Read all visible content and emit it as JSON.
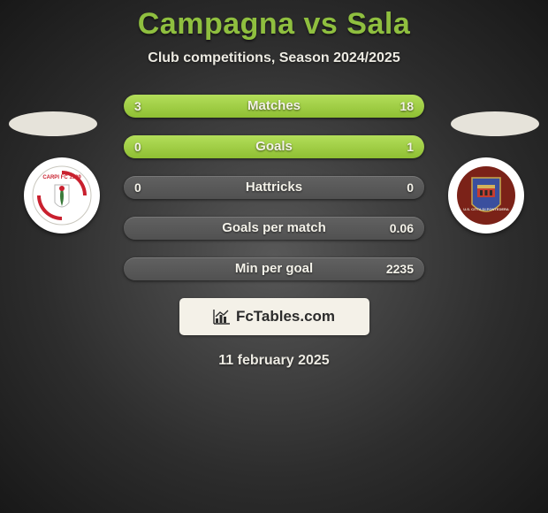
{
  "header": {
    "title": "Campagna vs Sala",
    "title_color": "#8fbf3f",
    "subtitle": "Club competitions, Season 2024/2025"
  },
  "stats": {
    "bar_bg": "#585858",
    "fill_color_top": "#b3de5a",
    "fill_color_bottom": "#8fbf33",
    "rows": [
      {
        "label": "Matches",
        "left": "3",
        "right": "18",
        "fill_left_pct": 14,
        "fill_right_pct": 86
      },
      {
        "label": "Goals",
        "left": "0",
        "right": "1",
        "fill_left_pct": 0,
        "fill_right_pct": 100
      },
      {
        "label": "Hattricks",
        "left": "0",
        "right": "0",
        "fill_left_pct": 0,
        "fill_right_pct": 0
      },
      {
        "label": "Goals per match",
        "left": "",
        "right": "0.06",
        "fill_left_pct": 0,
        "fill_right_pct": 0
      },
      {
        "label": "Min per goal",
        "left": "",
        "right": "2235",
        "fill_left_pct": 0,
        "fill_right_pct": 0
      }
    ]
  },
  "footer": {
    "brand": "FcTables.com",
    "date": "11 february 2025"
  },
  "clubs": {
    "left": {
      "name": "Carpi FC 1909",
      "badge_bg": "#ffffff",
      "badge_ring": "#d0d0d0",
      "accent": "#c9202e"
    },
    "right": {
      "name": "Citta di Pontedera",
      "badge_bg": "#3a4f9e",
      "badge_ring": "#7b2218",
      "accent": "#c53d30"
    }
  },
  "colors": {
    "page_bg_center": "#585858",
    "page_bg_edge": "#181818",
    "text_light": "#eceae2"
  }
}
